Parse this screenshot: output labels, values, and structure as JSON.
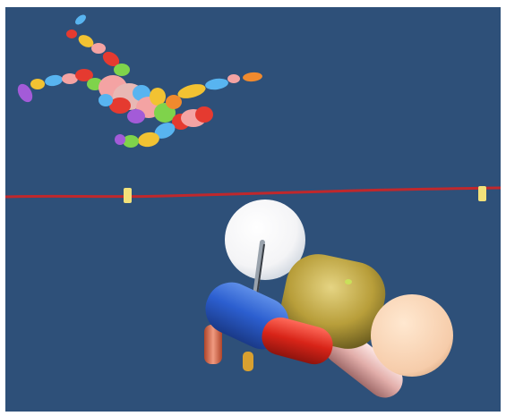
{
  "scene": {
    "background_color": "#2e5079",
    "ground_line_color": "#c0282c",
    "ground_marker_color": "#f2e17a",
    "icon": "3d-simulation-viewport",
    "upper_figure": {
      "description_icon": "ragdoll-humanoid-icon",
      "palette": [
        "#f4a3a3",
        "#e53a30",
        "#f2c232",
        "#7fd34b",
        "#58b4f0",
        "#f08a2e",
        "#a35bd8",
        "#f5c9b5"
      ]
    },
    "lower_figure": {
      "description_icon": "ragdoll-body-primitives-icon",
      "head_color": "#ffffff",
      "torso_color": "#c9b14a",
      "hip_color": "#f6d2ad",
      "pelvis_color": "#2a5fc7",
      "thigh_color": "#d72a1f",
      "shin_color": "#e8b8b4"
    }
  }
}
